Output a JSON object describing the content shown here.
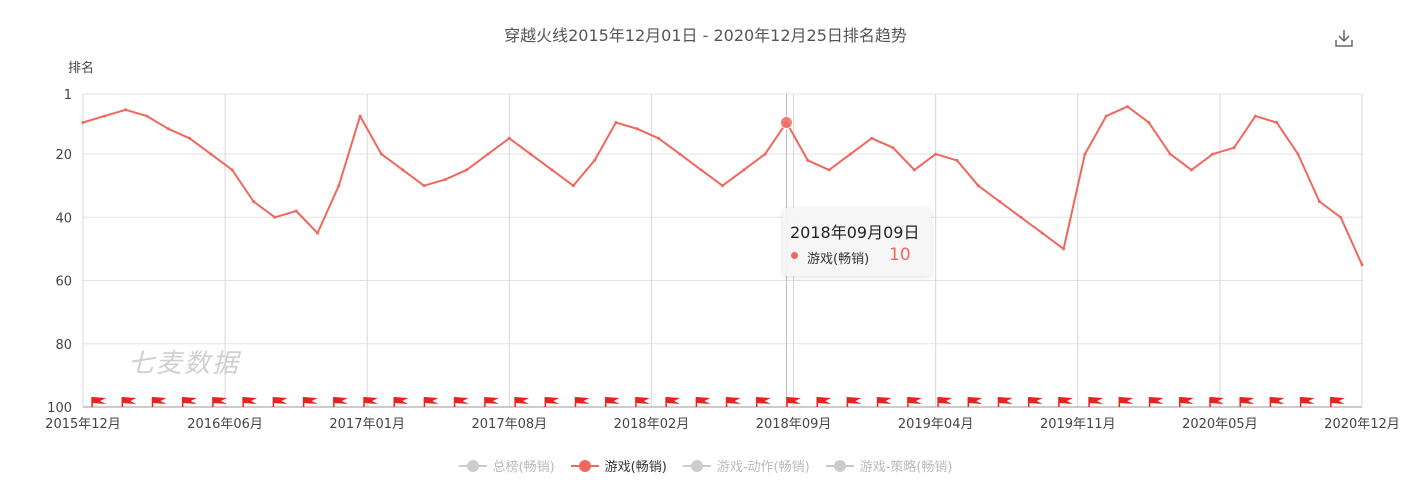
{
  "chart_data": {
    "type": "line",
    "title": "穿越火线2015年12月01日 - 2020年12月25日排名趋势",
    "ylabel": "排名",
    "y_inverted": true,
    "ylim": [
      1,
      100
    ],
    "y_ticks": [
      "1",
      "20",
      "40",
      "60",
      "80",
      "100"
    ],
    "x_ticks": [
      "2015年12月",
      "2016年06月",
      "2017年01月",
      "2017年08月",
      "2018年02月",
      "2018年09月",
      "2019年04月",
      "2019年11月",
      "2020年05月",
      "2020年12月"
    ],
    "grid": true,
    "legend_position": "bottom",
    "series": [
      {
        "name": "游戏(畅销)",
        "color": "#f0675d",
        "x": [
          "2015年12月",
          "2016年01月",
          "2016年02月",
          "2016年03月",
          "2016年04月",
          "2016年05月",
          "2016年06月",
          "2016年07月",
          "2016年08月",
          "2016年09月",
          "2016年10月",
          "2016年11月",
          "2016年12月",
          "2017年01月",
          "2017年02月",
          "2017年03月",
          "2017年04月",
          "2017年05月",
          "2017年06月",
          "2017年07月",
          "2017年08月",
          "2017年09月",
          "2017年10月",
          "2017年11月",
          "2017年12月",
          "2018年01月",
          "2018年02月",
          "2018年03月",
          "2018年04月",
          "2018年05月",
          "2018年06月",
          "2018年07月",
          "2018年08月",
          "2018年09月",
          "2018年10月",
          "2018年11月",
          "2018年12月",
          "2019年01月",
          "2019年02月",
          "2019年03月",
          "2019年04月",
          "2019年05月",
          "2019年06月",
          "2019年07月",
          "2019年08月",
          "2019年09月",
          "2019年10月",
          "2019年11月",
          "2019年12月",
          "2020年01月",
          "2020年02月",
          "2020年03月",
          "2020年04月",
          "2020年05月",
          "2020年06月",
          "2020年07月",
          "2020年08月",
          "2020年09月",
          "2020年10月",
          "2020年11月",
          "2020年12月"
        ],
        "values": [
          10,
          8,
          6,
          8,
          12,
          15,
          20,
          25,
          35,
          40,
          38,
          45,
          30,
          8,
          20,
          25,
          30,
          28,
          25,
          20,
          15,
          20,
          25,
          30,
          22,
          10,
          12,
          15,
          20,
          25,
          30,
          25,
          20,
          10,
          22,
          25,
          20,
          15,
          18,
          25,
          20,
          22,
          30,
          35,
          40,
          45,
          50,
          20,
          8,
          5,
          10,
          20,
          25,
          20,
          18,
          8,
          10,
          20,
          35,
          40,
          55
        ]
      },
      {
        "name": "总榜(畅销)",
        "enabled": false
      },
      {
        "name": "游戏-动作(畅销)",
        "enabled": false
      },
      {
        "name": "游戏-策略(畅销)",
        "enabled": false
      }
    ],
    "tooltip": {
      "date": "2018年09月09日",
      "series": "游戏(畅销)",
      "value": "10"
    },
    "event_flags": {
      "count": 42,
      "color": "#e8231f"
    }
  },
  "watermark": "七麦数据",
  "download_icon": "download-icon",
  "legend": [
    {
      "label": "总榜(畅销)",
      "active": false
    },
    {
      "label": "游戏(畅销)",
      "active": true
    },
    {
      "label": "游戏-动作(畅销)",
      "active": false
    },
    {
      "label": "游戏-策略(畅销)",
      "active": false
    }
  ],
  "colors": {
    "accent": "#f0675d",
    "inactive": "#cccccc",
    "flag": "#e8231f"
  }
}
